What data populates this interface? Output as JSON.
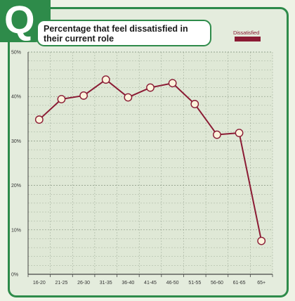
{
  "badge": {
    "letter": "Q"
  },
  "chart_data": {
    "type": "line",
    "title": "Percentage that feel dissatisfied in their current role",
    "xlabel": "",
    "ylabel": "",
    "categories": [
      "16-20",
      "21-25",
      "26-30",
      "31-35",
      "36-40",
      "41-45",
      "46-50",
      "51-55",
      "56-60",
      "61-65",
      "65+"
    ],
    "series": [
      {
        "name": "Dissatisfied",
        "values": [
          34.8,
          39.4,
          40.2,
          43.8,
          39.8,
          42.0,
          43.0,
          38.3,
          31.4,
          31.8,
          7.5
        ]
      }
    ],
    "ylim": [
      0,
      50
    ],
    "yticks": [
      0,
      10,
      20,
      30,
      40,
      50
    ],
    "ytick_labels": [
      "0%",
      "10%",
      "20%",
      "30%",
      "40%",
      "50%"
    ],
    "grid": true,
    "legend": "top-right",
    "colors": {
      "line": "#8b1b34",
      "marker_fill": "#fbf3dc",
      "grid": "#7a8a74",
      "frame": "#2e8b4a"
    }
  }
}
